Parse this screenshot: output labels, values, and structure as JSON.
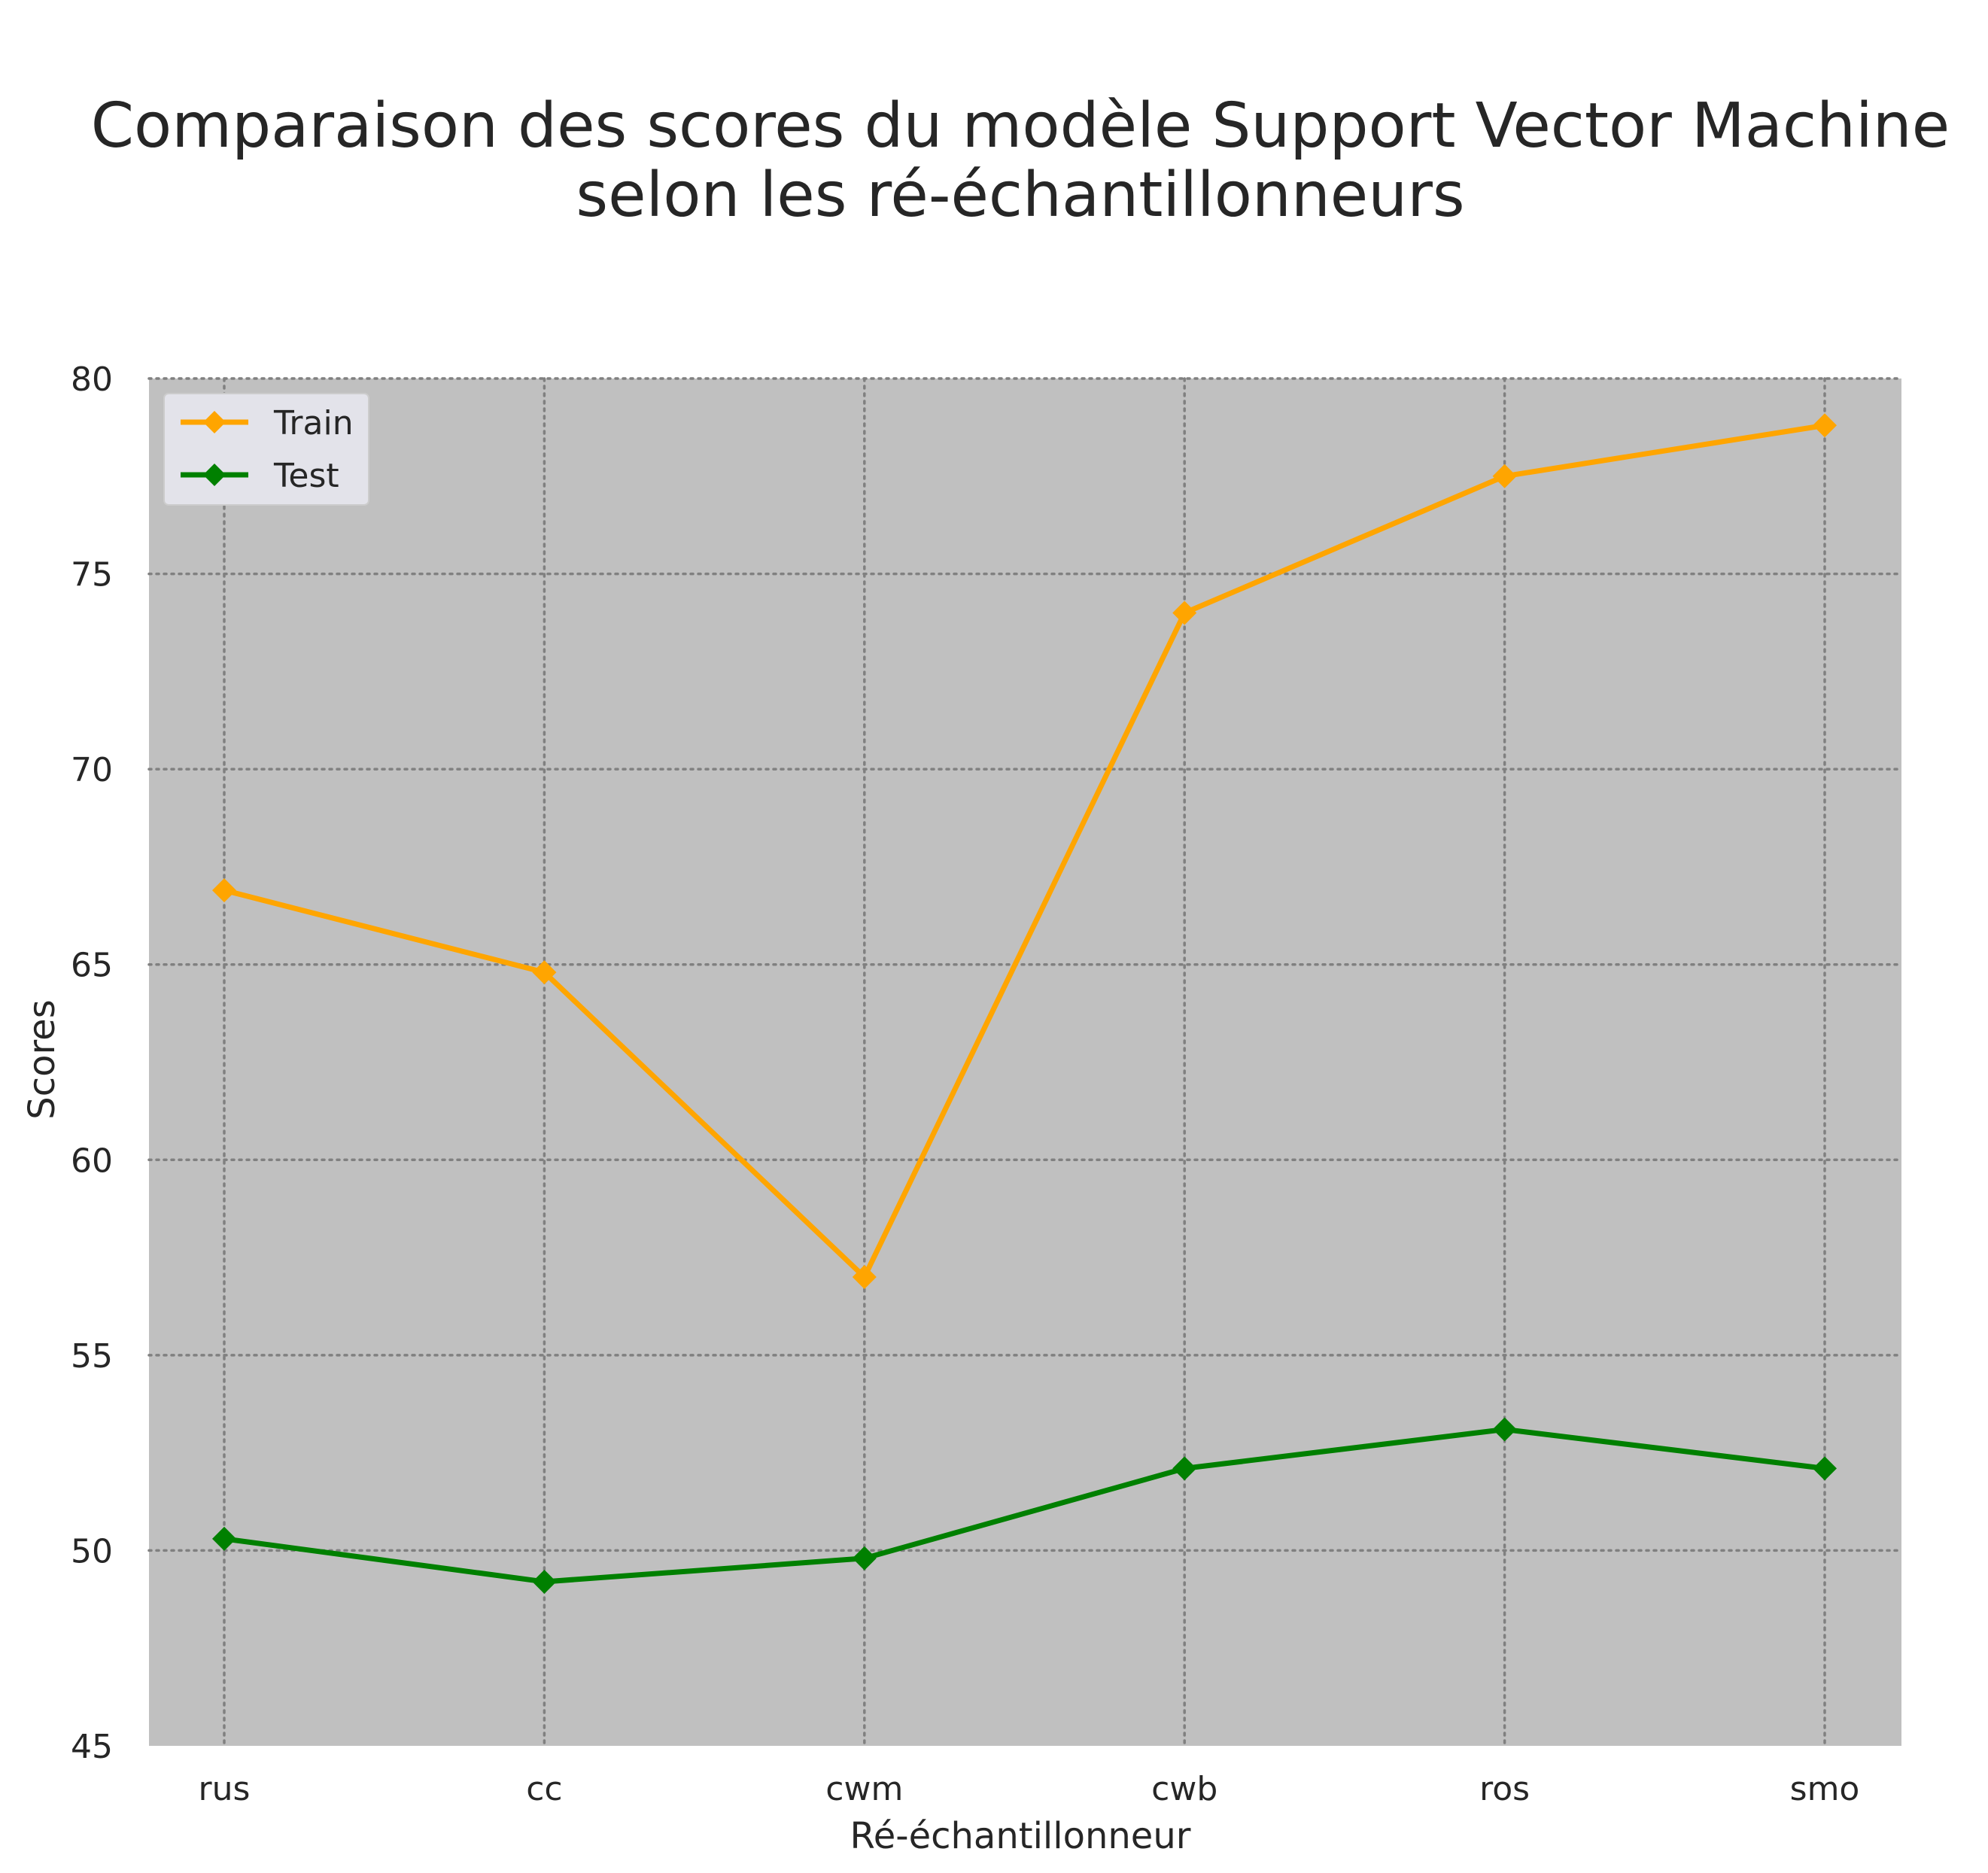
{
  "chart_data": {
    "type": "line",
    "title_lines": [
      "Comparaison des scores du modèle Support Vector Machine",
      "selon les ré-échantillonneurs"
    ],
    "xlabel": "Ré-échantillonneur",
    "ylabel": "Scores",
    "categories": [
      "rus",
      "cc",
      "cwm",
      "cwb",
      "ros",
      "smo"
    ],
    "ylim": [
      45,
      80
    ],
    "yticks": [
      45,
      50,
      55,
      60,
      65,
      70,
      75,
      80
    ],
    "grid": true,
    "grid_style": "dotted",
    "legend_position": "top-left",
    "background_color": "#c0c0c0",
    "series": [
      {
        "name": "Train",
        "color": "#ffa500",
        "marker": "diamond",
        "values": [
          66.9,
          64.8,
          57.0,
          74.0,
          77.5,
          78.8
        ]
      },
      {
        "name": "Test",
        "color": "#008000",
        "marker": "diamond",
        "values": [
          50.3,
          49.2,
          49.8,
          52.1,
          53.1,
          52.1
        ]
      }
    ]
  }
}
